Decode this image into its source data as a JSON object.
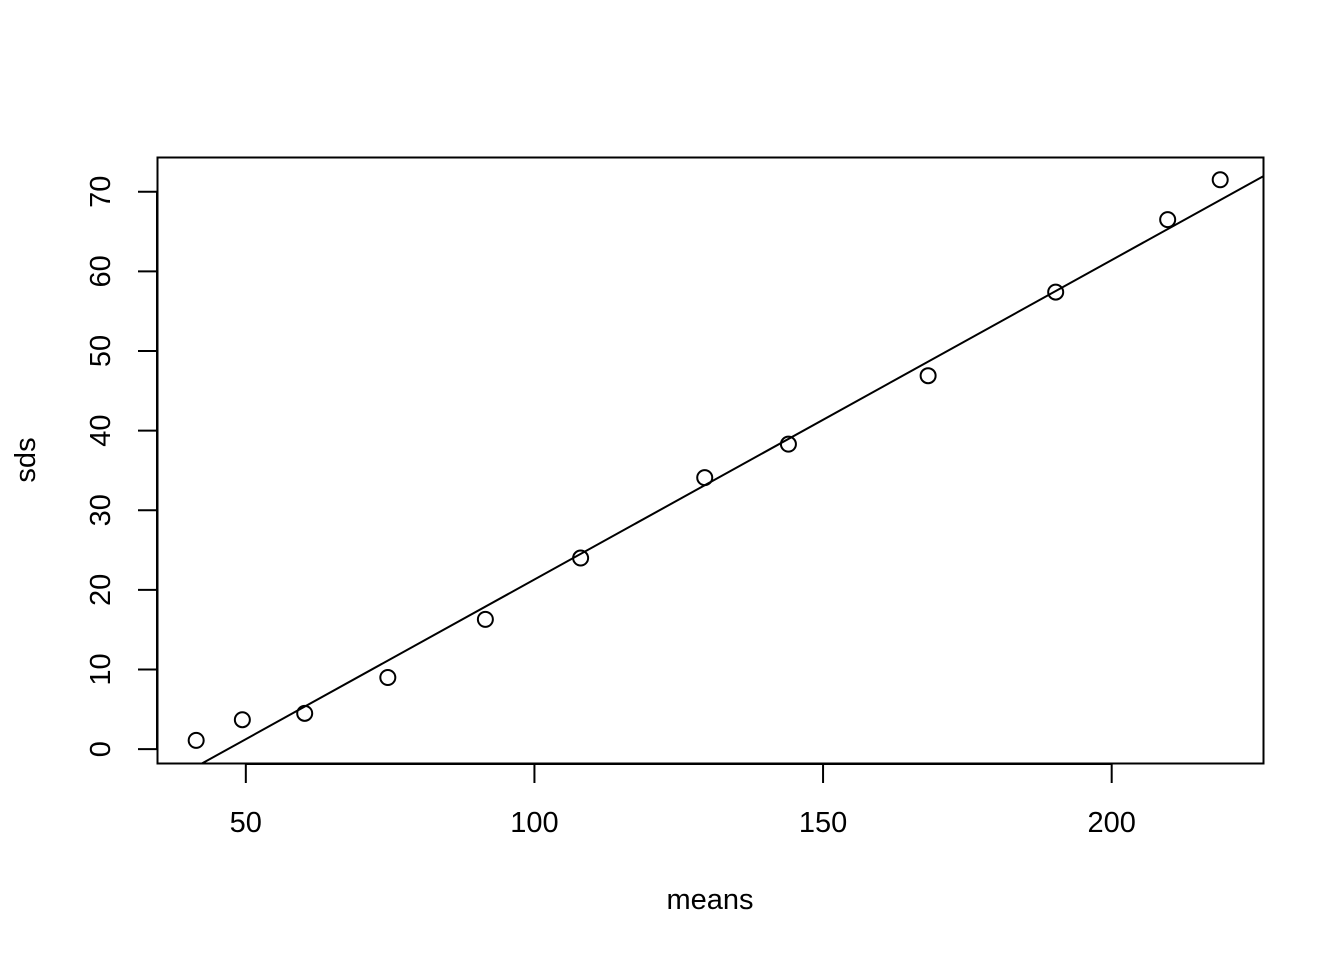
{
  "chart_data": {
    "type": "scatter",
    "title": "",
    "xlabel": "means",
    "ylabel": "sds",
    "xlim": [
      34.7,
      226.3
    ],
    "ylim": [
      -1.8,
      74.3
    ],
    "x_ticks": [
      50,
      100,
      150,
      200
    ],
    "y_ticks": [
      0,
      10,
      20,
      30,
      40,
      50,
      60,
      70
    ],
    "grid": false,
    "legend": "none",
    "series": [
      {
        "points": [
          {
            "x": 41.4,
            "y": 1.1
          },
          {
            "x": 49.4,
            "y": 3.7
          },
          {
            "x": 60.2,
            "y": 4.5
          },
          {
            "x": 74.6,
            "y": 9.0
          },
          {
            "x": 91.5,
            "y": 16.3
          },
          {
            "x": 108.0,
            "y": 24.0
          },
          {
            "x": 129.5,
            "y": 34.1
          },
          {
            "x": 144.0,
            "y": 38.3
          },
          {
            "x": 168.2,
            "y": 46.9
          },
          {
            "x": 190.3,
            "y": 57.4
          },
          {
            "x": 209.7,
            "y": 66.5
          },
          {
            "x": 218.8,
            "y": 71.5
          }
        ]
      }
    ],
    "fit_line": {
      "intercept": -18.8,
      "slope": 0.4011
    }
  }
}
